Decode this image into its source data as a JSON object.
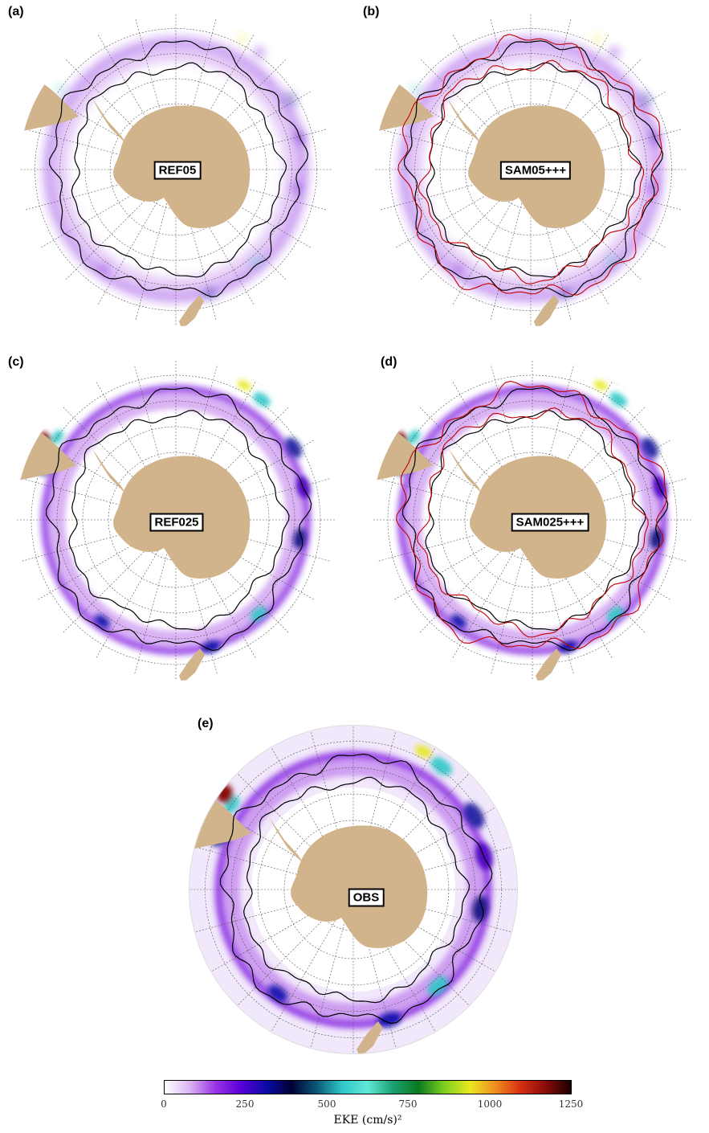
{
  "panels": [
    {
      "letter": "(a)",
      "label": "REF05",
      "resolution": "coarse",
      "red_contours": false
    },
    {
      "letter": "(b)",
      "label": "SAM05+++",
      "resolution": "coarse",
      "red_contours": true
    },
    {
      "letter": "(c)",
      "label": "REF025",
      "resolution": "fine",
      "red_contours": false
    },
    {
      "letter": "(d)",
      "label": "SAM025+++",
      "resolution": "fine",
      "red_contours": true
    },
    {
      "letter": "(e)",
      "label": "OBS",
      "resolution": "obs",
      "red_contours": false
    }
  ],
  "colorbar": {
    "title": "EKE (cm/s)²",
    "ticks": [
      "0",
      "250",
      "500",
      "750",
      "1000",
      "1250"
    ],
    "min": 0,
    "max": 1250,
    "colors": [
      "#ffffff",
      "#d9b3f2",
      "#9a33e6",
      "#5a00d6",
      "#0a0aa8",
      "#000033",
      "#0a5a7a",
      "#2fc8c8",
      "#60e8d8",
      "#1aa070",
      "#0a7a20",
      "#7ad020",
      "#e8e820",
      "#f09020",
      "#d83010",
      "#8a0a0a",
      "#1a0000"
    ]
  },
  "colors": {
    "land": "#d2b48c",
    "grid": "#555555",
    "front_black": "#000000",
    "front_red": "#c00000"
  }
}
